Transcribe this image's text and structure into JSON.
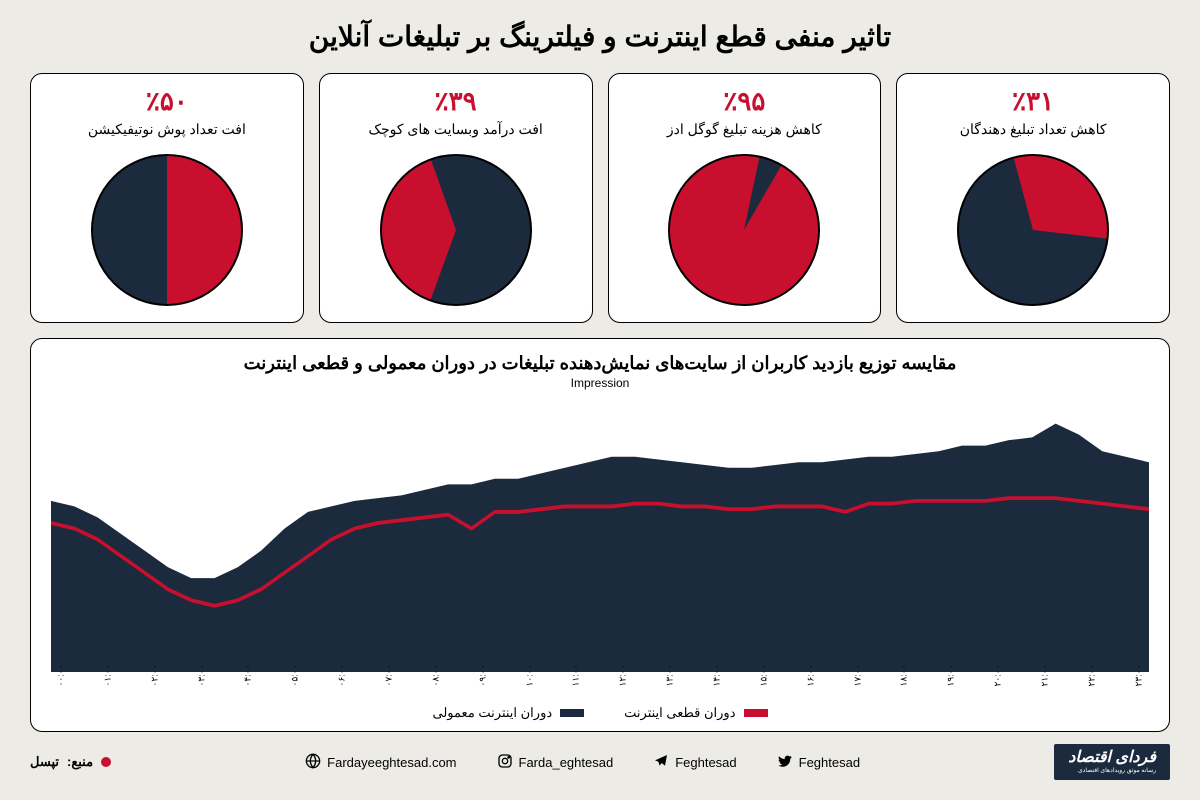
{
  "title": "تاثیر منفی قطع اینترنت و فیلترینگ بر تبلیغات آنلاین",
  "colors": {
    "accent": "#c8102e",
    "dark": "#1b2a3d",
    "bg": "#ecebe6",
    "card_bg": "#ffffff",
    "border": "#000000",
    "text": "#000000"
  },
  "pies": [
    {
      "percent_label": "٪۵۰",
      "caption": "افت تعداد پوش نوتیفیکیشن",
      "value": 50,
      "start_angle": 0
    },
    {
      "percent_label": "٪۳۹",
      "caption": "افت درآمد وبسایت های کوچک",
      "value": 39,
      "start_angle": 200
    },
    {
      "percent_label": "٪۹۵",
      "caption": "کاهش هزینه تبلیغ گوگل ادز",
      "value": 95,
      "start_angle": 30
    },
    {
      "percent_label": "٪۳۱",
      "caption": "کاهش تعداد تبلیغ دهندگان",
      "value": 31,
      "start_angle": -15
    }
  ],
  "area_chart": {
    "title": "مقایسه توزیع بازدید کاربران از سایت‌های نمایش‌دهنده تبلیغات در دوران معمولی و قطعی اینترنت",
    "y_label": "Impression",
    "x_ticks": [
      "۰۰:۰۰",
      "۰۱:۰۰",
      "۰۲:۰۰",
      "۰۳:۰۰",
      "۰۴:۰۰",
      "۰۵:۰۰",
      "۰۶:۰۰",
      "۰۷:۰۰",
      "۰۸:۰۰",
      "۰۹:۰۰",
      "۱۰:۰۰",
      "۱۱:۰۰",
      "۱۲:۰۰",
      "۱۳:۰۰",
      "۱۴:۰۰",
      "۱۵:۰۰",
      "۱۶:۰۰",
      "۱۷:۰۰",
      "۱۸:۰۰",
      "۱۹:۰۰",
      "۲۰:۰۰",
      "۲۱:۰۰",
      "۲۲:۰۰",
      "۲۳:۰۰"
    ],
    "y_range": [
      0,
      100
    ],
    "series_normal": {
      "label": "دوران اینترنت معمولی",
      "color": "#1b2a3d",
      "type": "area",
      "values": [
        62,
        60,
        56,
        50,
        44,
        38,
        34,
        34,
        38,
        44,
        52,
        58,
        60,
        62,
        63,
        64,
        66,
        68,
        68,
        70,
        70,
        72,
        74,
        76,
        78,
        78,
        77,
        76,
        75,
        74,
        74,
        75,
        76,
        76,
        77,
        78,
        78,
        79,
        80,
        82,
        82,
        84,
        85,
        90,
        86,
        80,
        78,
        76
      ]
    },
    "series_outage": {
      "label": "دوران قطعی اینترنت",
      "color": "#c8102e",
      "type": "line",
      "line_width": 2.5,
      "values": [
        54,
        52,
        48,
        42,
        36,
        30,
        26,
        24,
        26,
        30,
        36,
        42,
        48,
        52,
        54,
        55,
        56,
        57,
        52,
        58,
        58,
        59,
        60,
        60,
        60,
        61,
        61,
        60,
        60,
        59,
        59,
        60,
        60,
        60,
        58,
        61,
        61,
        62,
        62,
        62,
        62,
        63,
        63,
        63,
        62,
        61,
        60,
        59
      ]
    },
    "legend": [
      {
        "label": "دوران قطعی اینترنت",
        "color": "#c8102e"
      },
      {
        "label": "دوران اینترنت معمولی",
        "color": "#1b2a3d"
      }
    ]
  },
  "source": {
    "prefix": "منبع:",
    "name": "تپسل"
  },
  "socials": [
    {
      "icon": "globe",
      "label": "Fardayeeghtesad.com"
    },
    {
      "icon": "instagram",
      "label": "Farda_eghtesad"
    },
    {
      "icon": "telegram",
      "label": "Feghtesad"
    },
    {
      "icon": "twitter",
      "label": "Feghtesad"
    }
  ],
  "logo": {
    "main": "فردای اقتصاد",
    "sub": "رسانه موثق رویدادهای اقتصادی"
  }
}
